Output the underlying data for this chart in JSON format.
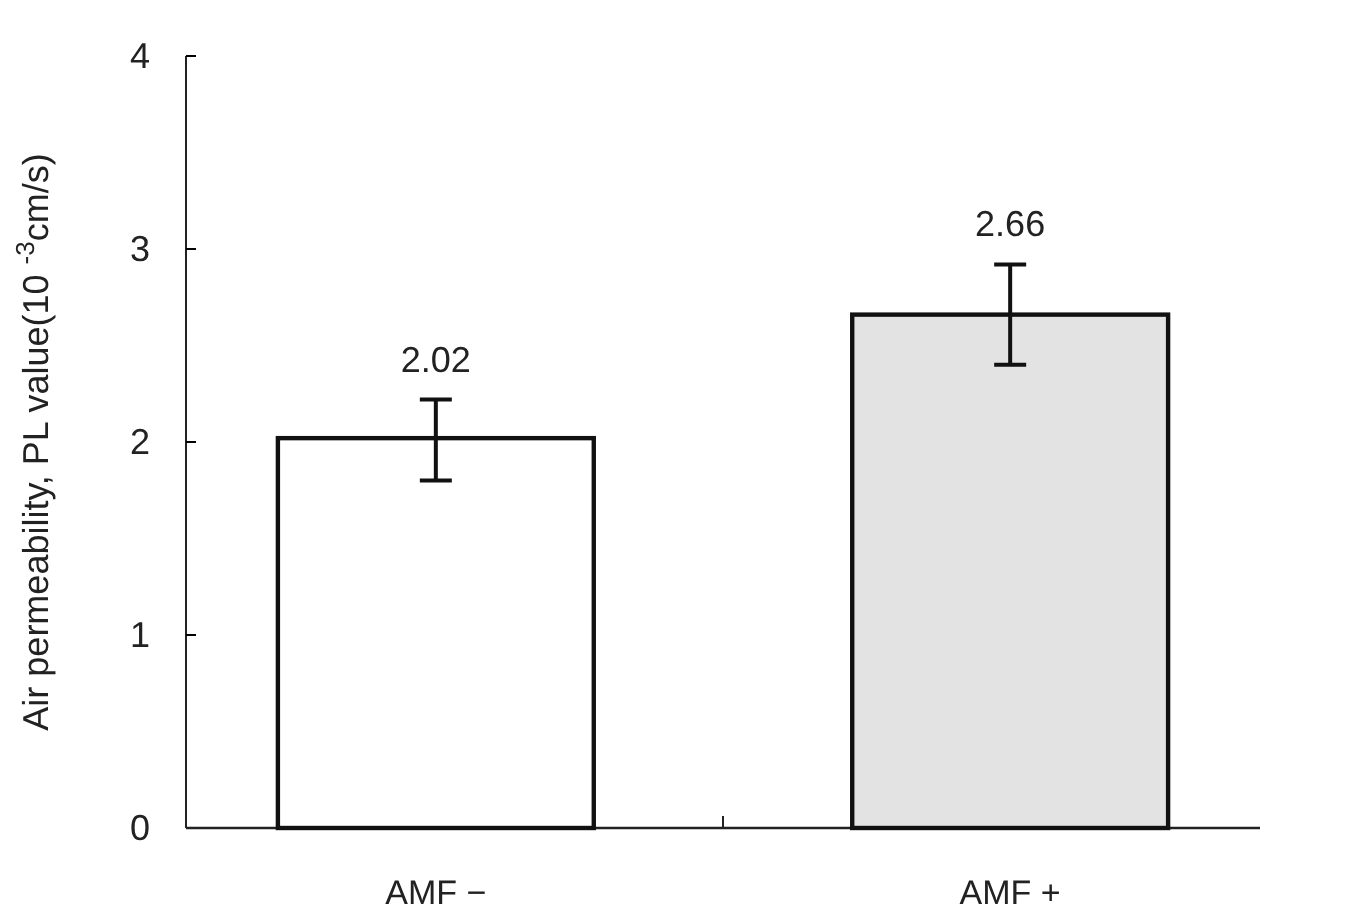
{
  "chart_data": {
    "type": "bar",
    "ylabel": "Air permeability, PL value(10 $^{-3}$cm/s)",
    "categories": [
      "AMF −",
      "AMF +"
    ],
    "values": [
      2.02,
      2.66
    ],
    "colors": [
      "#ffffff",
      "#e3e3e3"
    ],
    "errors": [
      [
        1.8,
        2.22
      ],
      [
        2.4,
        2.92
      ]
    ],
    "data_labels": true,
    "ylim": [
      0,
      4
    ],
    "yticks": [
      0,
      1,
      2,
      3,
      4
    ],
    "grid": false
  }
}
